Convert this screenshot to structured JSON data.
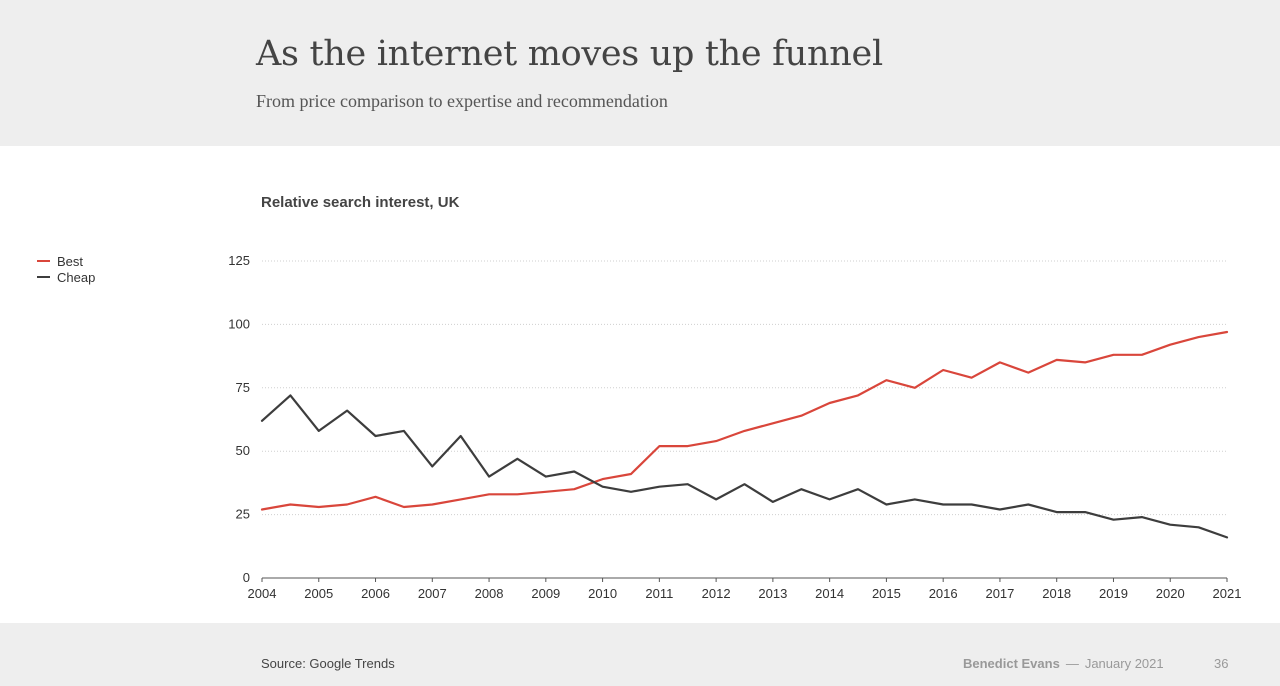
{
  "header": {
    "title": "As the internet moves up the funnel",
    "subtitle": "From price comparison to expertise and recommendation"
  },
  "footer": {
    "source": "Source: Google Trends",
    "author": "Benedict Evans",
    "separator": "—",
    "date": "January 2021",
    "page_number": "36"
  },
  "colors": {
    "best": "#d9463b",
    "cheap": "#3d3d3d",
    "grid": "#cfcfcf",
    "header_bg": "#eeeeee"
  },
  "chart_data": {
    "type": "line",
    "title": "Relative search interest, UK",
    "xlabel": "",
    "ylabel": "",
    "xlim": [
      2004,
      2021
    ],
    "ylim": [
      0,
      125
    ],
    "yticks": [
      0,
      25,
      50,
      75,
      100,
      125
    ],
    "xticks": [
      "2004",
      "2005",
      "2006",
      "2007",
      "2008",
      "2009",
      "2010",
      "2011",
      "2012",
      "2013",
      "2014",
      "2015",
      "2016",
      "2017",
      "2018",
      "2019",
      "2020",
      "2021"
    ],
    "grid": true,
    "legend_position": "left",
    "series": [
      {
        "name": "Best",
        "color": "#d9463b",
        "x": [
          2004.0,
          2004.5,
          2005.0,
          2005.5,
          2006.0,
          2006.5,
          2007.0,
          2007.5,
          2008.0,
          2008.5,
          2009.0,
          2009.5,
          2010.0,
          2010.5,
          2011.0,
          2011.5,
          2012.0,
          2012.5,
          2013.0,
          2013.5,
          2014.0,
          2014.5,
          2015.0,
          2015.5,
          2016.0,
          2016.5,
          2017.0,
          2017.5,
          2018.0,
          2018.5,
          2019.0,
          2019.5,
          2020.0,
          2020.5,
          2021.0
        ],
        "values": [
          27,
          29,
          28,
          29,
          32,
          28,
          29,
          31,
          33,
          33,
          34,
          35,
          39,
          41,
          52,
          52,
          54,
          58,
          61,
          64,
          69,
          72,
          78,
          75,
          82,
          79,
          85,
          81,
          86,
          85,
          88,
          88,
          92,
          95,
          97
        ]
      },
      {
        "name": "Cheap",
        "color": "#3d3d3d",
        "x": [
          2004.0,
          2004.5,
          2005.0,
          2005.5,
          2006.0,
          2006.5,
          2007.0,
          2007.5,
          2008.0,
          2008.5,
          2009.0,
          2009.5,
          2010.0,
          2010.5,
          2011.0,
          2011.5,
          2012.0,
          2012.5,
          2013.0,
          2013.5,
          2014.0,
          2014.5,
          2015.0,
          2015.5,
          2016.0,
          2016.5,
          2017.0,
          2017.5,
          2018.0,
          2018.5,
          2019.0,
          2019.5,
          2020.0,
          2020.5,
          2021.0
        ],
        "values": [
          62,
          72,
          58,
          66,
          56,
          58,
          44,
          56,
          40,
          47,
          40,
          42,
          36,
          34,
          36,
          37,
          31,
          37,
          30,
          35,
          31,
          35,
          29,
          31,
          29,
          29,
          27,
          29,
          26,
          26,
          23,
          24,
          21,
          20,
          16
        ]
      }
    ]
  }
}
